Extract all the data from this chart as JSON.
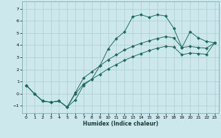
{
  "xlabel": "Humidex (Indice chaleur)",
  "bg_color": "#cce8ec",
  "line_color": "#1a6b5a",
  "grid_color": "#aacccc",
  "xlim": [
    -0.5,
    23.5
  ],
  "ylim": [
    -1.6,
    7.6
  ],
  "xticks": [
    0,
    1,
    2,
    3,
    4,
    5,
    6,
    7,
    8,
    9,
    10,
    11,
    12,
    13,
    14,
    15,
    16,
    17,
    18,
    19,
    20,
    21,
    22,
    23
  ],
  "yticks": [
    -1,
    0,
    1,
    2,
    3,
    4,
    5,
    6,
    7
  ],
  "series1_x": [
    0,
    1,
    2,
    3,
    4,
    5,
    6,
    7,
    8,
    9,
    10,
    11,
    12,
    13,
    14,
    15,
    16,
    17,
    18,
    19,
    20,
    21,
    22,
    23
  ],
  "series1_y": [
    0.7,
    0.0,
    -0.6,
    -0.7,
    -0.6,
    -1.1,
    -0.5,
    0.7,
    1.2,
    2.3,
    3.7,
    4.55,
    5.1,
    6.35,
    6.5,
    6.3,
    6.5,
    6.4,
    5.4,
    3.8,
    5.1,
    4.6,
    4.3,
    4.2
  ],
  "series2_x": [
    0,
    1,
    2,
    3,
    4,
    5,
    6,
    7,
    8,
    9,
    10,
    11,
    12,
    13,
    14,
    15,
    16,
    17,
    18,
    19,
    20,
    21,
    22,
    23
  ],
  "series2_y": [
    0.7,
    0.0,
    -0.6,
    -0.7,
    -0.6,
    -1.1,
    0.1,
    1.3,
    1.8,
    2.3,
    2.8,
    3.2,
    3.6,
    3.9,
    4.15,
    4.35,
    4.55,
    4.7,
    4.6,
    3.8,
    3.9,
    3.8,
    3.75,
    4.2
  ],
  "series3_x": [
    0,
    1,
    2,
    3,
    4,
    5,
    6,
    7,
    8,
    9,
    10,
    11,
    12,
    13,
    14,
    15,
    16,
    17,
    18,
    19,
    20,
    21,
    22,
    23
  ],
  "series3_y": [
    0.7,
    0.0,
    -0.6,
    -0.7,
    -0.6,
    -1.1,
    0.0,
    0.8,
    1.2,
    1.6,
    2.05,
    2.4,
    2.75,
    3.05,
    3.3,
    3.55,
    3.75,
    3.9,
    3.85,
    3.2,
    3.35,
    3.3,
    3.25,
    4.2
  ]
}
